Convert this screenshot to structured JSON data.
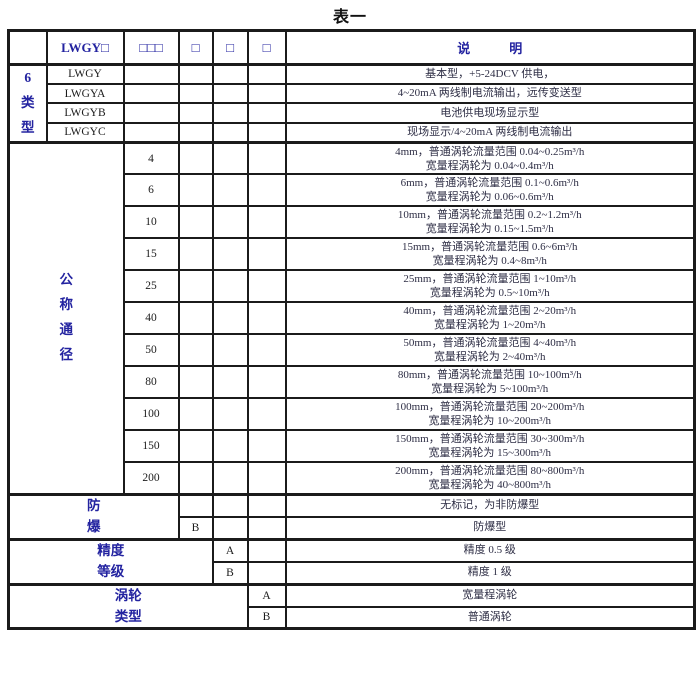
{
  "title": "表一",
  "colors": {
    "accent_blue": "#2323a0",
    "text_dark": "#1c1c1c",
    "description_text": "#2e2e45",
    "border": "#1b1b1b",
    "background": "#ffffff"
  },
  "header": {
    "empty": "",
    "model": "LWGY□",
    "dn": "□□□",
    "c4": "□",
    "c5": "□",
    "c6": "□",
    "desc": "说　　　明"
  },
  "type_section": {
    "label": "6类型",
    "rows": [
      {
        "code": "LWGY",
        "desc": "基本型，+5-24DCV 供电，"
      },
      {
        "code": "LWGYA",
        "desc": "4~20mA 两线制电流输出，远传变送型"
      },
      {
        "code": "LWGYB",
        "desc": "电池供电现场显示型"
      },
      {
        "code": "LWGYC",
        "desc": "现场显示/4~20mA 两线制电流输出"
      }
    ]
  },
  "dn_section": {
    "label": "公称通径",
    "rows": [
      {
        "code": "4",
        "line1": "4mm，普通涡轮流量范围 0.04~0.25m³/h",
        "line2": "宽量程涡轮为 0.04~0.4m³/h"
      },
      {
        "code": "6",
        "line1": "6mm，普通涡轮流量范围 0.1~0.6m³/h",
        "line2": "宽量程涡轮为 0.06~0.6m³/h"
      },
      {
        "code": "10",
        "line1": "10mm，普通涡轮流量范围 0.2~1.2m³/h",
        "line2": "宽量程涡轮为 0.15~1.5m³/h"
      },
      {
        "code": "15",
        "line1": "15mm，普通涡轮流量范围 0.6~6m³/h",
        "line2": "宽量程涡轮为 0.4~8m³/h"
      },
      {
        "code": "25",
        "line1": "25mm，普通涡轮流量范围 1~10m³/h",
        "line2": "宽量程涡轮为 0.5~10m³/h"
      },
      {
        "code": "40",
        "line1": "40mm，普通涡轮流量范围 2~20m³/h",
        "line2": "宽量程涡轮为 1~20m³/h"
      },
      {
        "code": "50",
        "line1": "50mm，普通涡轮流量范围 4~40m³/h",
        "line2": "宽量程涡轮为 2~40m³/h"
      },
      {
        "code": "80",
        "line1": "80mm，普通涡轮流量范围 10~100m³/h",
        "line2": "宽量程涡轮为 5~100m³/h"
      },
      {
        "code": "100",
        "line1": "100mm，普通涡轮流量范围 20~200m³/h",
        "line2": "宽量程涡轮为 10~200m³/h"
      },
      {
        "code": "150",
        "line1": "150mm，普通涡轮流量范围 30~300m³/h",
        "line2": "宽量程涡轮为 15~300m³/h"
      },
      {
        "code": "200",
        "line1": "200mm，普通涡轮流量范围 80~800m³/h",
        "line2": "宽量程涡轮为 40~800m³/h"
      }
    ]
  },
  "explosion_section": {
    "label": "防爆",
    "rows": [
      {
        "code": "",
        "desc": "无标记，为非防爆型"
      },
      {
        "code": "B",
        "desc": "防爆型"
      }
    ]
  },
  "accuracy_section": {
    "label": "精度等级",
    "rows": [
      {
        "code": "A",
        "desc": "精度 0.5 级"
      },
      {
        "code": "B",
        "desc": "精度 1 级"
      }
    ]
  },
  "turbine_section": {
    "label": "涡轮类型",
    "rows": [
      {
        "code": "A",
        "desc": "宽量程涡轮"
      },
      {
        "code": "B",
        "desc": "普通涡轮"
      }
    ]
  }
}
